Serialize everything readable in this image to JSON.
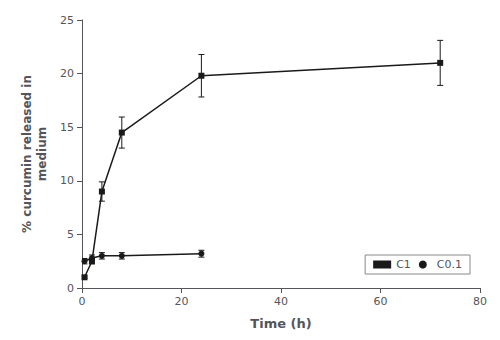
{
  "chart_data": {
    "type": "line",
    "xlabel": "Time (h)",
    "ylabel": "% curcumin released in\nmedium",
    "series": [
      {
        "name": "C1",
        "color": "#1a1a1a",
        "marker": "square",
        "x": [
          0.5,
          2,
          4,
          8,
          24,
          72
        ],
        "values": [
          1.0,
          2.5,
          9.0,
          14.5,
          19.8,
          21.0
        ],
        "error": [
          0.1,
          0.25,
          0.9,
          1.45,
          1.98,
          2.1
        ]
      },
      {
        "name": "C0.1",
        "color": "#1a1a1a",
        "marker": "circle",
        "x": [
          0.5,
          2,
          4,
          8,
          24
        ],
        "values": [
          2.5,
          2.8,
          3.0,
          3.0,
          3.2
        ],
        "error": [
          0.25,
          0.28,
          0.3,
          0.3,
          0.32
        ]
      }
    ],
    "xlim": [
      0,
      80
    ],
    "xticks": [
      0,
      20,
      40,
      60,
      80
    ],
    "ylim": [
      0,
      25
    ],
    "yticks": [
      0,
      5,
      10,
      15,
      20,
      25
    ],
    "grid": false,
    "legend": "lower right"
  }
}
